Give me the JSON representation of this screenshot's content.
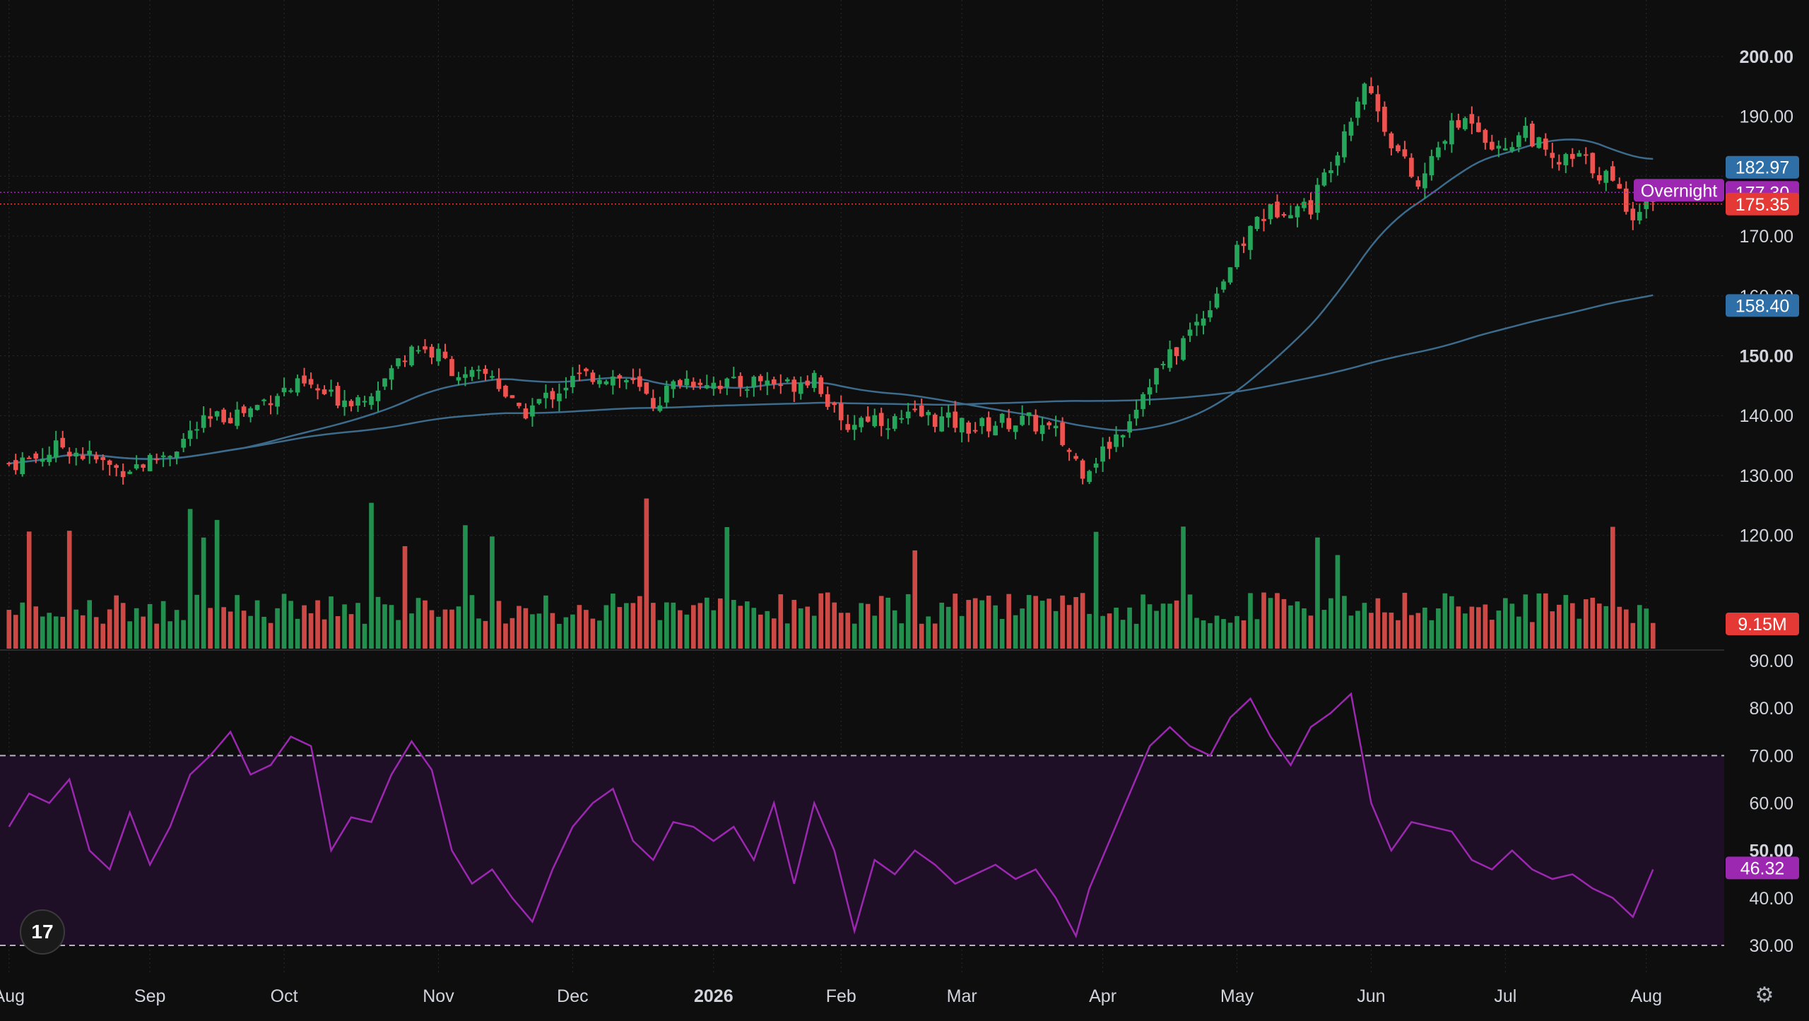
{
  "colors": {
    "background": "#0e0e0e",
    "grid": "#2a2a2a",
    "up": "#26a65b",
    "down": "#ef5350",
    "ma50": "#3d6b8c",
    "ma200": "#3d6b8c",
    "rsi": "#9c27b0",
    "rsi_band": "#1f0f26",
    "overnight": "#9c27b0",
    "ma_badge": "#2f6fa8",
    "last_badge": "#e53935",
    "axis_text": "#d1d4dc"
  },
  "icons": {
    "logo": "tradingview-logo-icon",
    "settings": "gear-icon"
  },
  "logo_text": "17",
  "settings_glyph": "⚙",
  "chart_data": {
    "type": "candlestick",
    "x_axis": {
      "ticks": [
        {
          "label": "Aug",
          "bar": 0
        },
        {
          "label": "Sep",
          "bar": 21
        },
        {
          "label": "Oct",
          "bar": 41
        },
        {
          "label": "Nov",
          "bar": 64
        },
        {
          "label": "Dec",
          "bar": 84
        },
        {
          "label": "2026",
          "bar": 105,
          "bold": true
        },
        {
          "label": "Feb",
          "bar": 124
        },
        {
          "label": "Mar",
          "bar": 142
        },
        {
          "label": "Apr",
          "bar": 163
        },
        {
          "label": "May",
          "bar": 183
        },
        {
          "label": "Jun",
          "bar": 203
        },
        {
          "label": "Jul",
          "bar": 223
        },
        {
          "label": "Aug",
          "bar": 244
        }
      ]
    },
    "price_axis": {
      "min": 115,
      "max": 200,
      "ticks": [
        "200.00",
        "190.00",
        "170.00",
        "160.00",
        "150.00",
        "140.00",
        "130.00",
        "120.00"
      ],
      "bold_ticks": [
        "200.00",
        "150.00"
      ]
    },
    "ohlc_close_path": [
      [
        0,
        132
      ],
      [
        4,
        133
      ],
      [
        8,
        135
      ],
      [
        12,
        133
      ],
      [
        16,
        131
      ],
      [
        20,
        132
      ],
      [
        24,
        134
      ],
      [
        28,
        138
      ],
      [
        32,
        140
      ],
      [
        36,
        141
      ],
      [
        40,
        144
      ],
      [
        44,
        145
      ],
      [
        48,
        143
      ],
      [
        52,
        143
      ],
      [
        56,
        146
      ],
      [
        60,
        152
      ],
      [
        64,
        150
      ],
      [
        68,
        146
      ],
      [
        72,
        147
      ],
      [
        76,
        140
      ],
      [
        80,
        143
      ],
      [
        84,
        146
      ],
      [
        88,
        147
      ],
      [
        92,
        146
      ],
      [
        96,
        142
      ],
      [
        100,
        146
      ],
      [
        104,
        146
      ],
      [
        108,
        145
      ],
      [
        112,
        146
      ],
      [
        116,
        145
      ],
      [
        120,
        147
      ],
      [
        124,
        138
      ],
      [
        128,
        140
      ],
      [
        132,
        139
      ],
      [
        136,
        140
      ],
      [
        140,
        139
      ],
      [
        144,
        138
      ],
      [
        148,
        139
      ],
      [
        152,
        139
      ],
      [
        156,
        137
      ],
      [
        160,
        131
      ],
      [
        163,
        134
      ],
      [
        166,
        138
      ],
      [
        170,
        146
      ],
      [
        174,
        151
      ],
      [
        178,
        157
      ],
      [
        182,
        165
      ],
      [
        186,
        173
      ],
      [
        190,
        175
      ],
      [
        194,
        175
      ],
      [
        198,
        185
      ],
      [
        202,
        196
      ],
      [
        206,
        186
      ],
      [
        210,
        178
      ],
      [
        214,
        187
      ],
      [
        218,
        190
      ],
      [
        222,
        184
      ],
      [
        226,
        188
      ],
      [
        230,
        182
      ],
      [
        234,
        183
      ],
      [
        238,
        180
      ],
      [
        242,
        174
      ],
      [
        245,
        177
      ]
    ],
    "ma50": {
      "last": "182.97"
    },
    "ma200": {
      "last": "158.40"
    },
    "overnight": {
      "label": "Overnight",
      "value": "177.30"
    },
    "last_price": "175.35",
    "volume": {
      "last": "9.15M"
    },
    "rsi": {
      "last": "46.32",
      "upper_band": 70,
      "lower_band": 30,
      "ticks": [
        "90.00",
        "80.00",
        "70.00",
        "60.00",
        "50.00",
        "40.00",
        "30.00"
      ],
      "bold_ticks": [
        "50.00"
      ],
      "path": [
        [
          0,
          55
        ],
        [
          3,
          62
        ],
        [
          6,
          60
        ],
        [
          9,
          65
        ],
        [
          12,
          50
        ],
        [
          15,
          46
        ],
        [
          18,
          58
        ],
        [
          21,
          47
        ],
        [
          24,
          55
        ],
        [
          27,
          66
        ],
        [
          30,
          70
        ],
        [
          33,
          75
        ],
        [
          36,
          66
        ],
        [
          39,
          68
        ],
        [
          42,
          74
        ],
        [
          45,
          72
        ],
        [
          48,
          50
        ],
        [
          51,
          57
        ],
        [
          54,
          56
        ],
        [
          57,
          66
        ],
        [
          60,
          73
        ],
        [
          63,
          67
        ],
        [
          66,
          50
        ],
        [
          69,
          43
        ],
        [
          72,
          46
        ],
        [
          75,
          40
        ],
        [
          78,
          35
        ],
        [
          81,
          46
        ],
        [
          84,
          55
        ],
        [
          87,
          60
        ],
        [
          90,
          63
        ],
        [
          93,
          52
        ],
        [
          96,
          48
        ],
        [
          99,
          56
        ],
        [
          102,
          55
        ],
        [
          105,
          52
        ],
        [
          108,
          55
        ],
        [
          111,
          48
        ],
        [
          114,
          60
        ],
        [
          117,
          43
        ],
        [
          120,
          60
        ],
        [
          123,
          50
        ],
        [
          126,
          33
        ],
        [
          129,
          48
        ],
        [
          132,
          45
        ],
        [
          135,
          50
        ],
        [
          138,
          47
        ],
        [
          141,
          43
        ],
        [
          144,
          45
        ],
        [
          147,
          47
        ],
        [
          150,
          44
        ],
        [
          153,
          46
        ],
        [
          156,
          40
        ],
        [
          159,
          32
        ],
        [
          161,
          42
        ],
        [
          164,
          52
        ],
        [
          167,
          62
        ],
        [
          170,
          72
        ],
        [
          173,
          76
        ],
        [
          176,
          72
        ],
        [
          179,
          70
        ],
        [
          182,
          78
        ],
        [
          185,
          82
        ],
        [
          188,
          74
        ],
        [
          191,
          68
        ],
        [
          194,
          76
        ],
        [
          197,
          79
        ],
        [
          200,
          83
        ],
        [
          203,
          60
        ],
        [
          206,
          50
        ],
        [
          209,
          56
        ],
        [
          212,
          55
        ],
        [
          215,
          54
        ],
        [
          218,
          48
        ],
        [
          221,
          46
        ],
        [
          224,
          50
        ],
        [
          227,
          46
        ],
        [
          230,
          44
        ],
        [
          233,
          45
        ],
        [
          236,
          42
        ],
        [
          239,
          40
        ],
        [
          242,
          36
        ],
        [
          245,
          46
        ]
      ]
    }
  }
}
